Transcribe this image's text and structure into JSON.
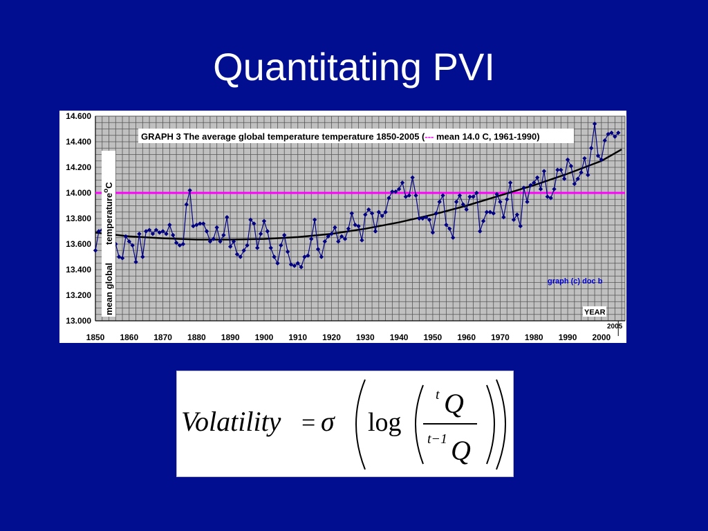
{
  "slide": {
    "title": "Quantitating PVI"
  },
  "chart_data": {
    "type": "line",
    "title": "GRAPH 3 The average global temperature temperature 1850-2005 (",
    "title_dash": "---",
    "title_suffix": " mean 14.0 C, 1961-1990)",
    "ylabel_part1": "mean global",
    "ylabel_part2": "temperature",
    "ylabel_degree": "o",
    "ylabel_unit": "C",
    "xlabel": "YEAR",
    "end_year_label": "2005",
    "credit": "graph (c) doc b",
    "xlim": [
      1850,
      2007
    ],
    "ylim": [
      13.0,
      14.6
    ],
    "x_ticks": [
      "1850",
      "1860",
      "1870",
      "1880",
      "1890",
      "1900",
      "1910",
      "1920",
      "1930",
      "1940",
      "1950",
      "1960",
      "1970",
      "1980",
      "1990",
      "2000"
    ],
    "y_ticks": [
      "13.000",
      "13.200",
      "13.400",
      "13.600",
      "13.800",
      "14.000",
      "14.200",
      "14.400",
      "14.600"
    ],
    "grid": true,
    "colors": {
      "plot_bg": "#c0c0c0",
      "grid": "#555555",
      "series": "#000080",
      "trend": "#000000",
      "reference": "#ff00ff",
      "credit": "#0000cc"
    },
    "reference_line": {
      "name": "mean 14.0 C, 1961-1990",
      "y": 14.0
    },
    "trend": {
      "x": [
        1850,
        1860,
        1870,
        1880,
        1890,
        1900,
        1910,
        1920,
        1930,
        1940,
        1950,
        1960,
        1970,
        1980,
        1990,
        2000,
        2006
      ],
      "y": [
        13.69,
        13.66,
        13.645,
        13.635,
        13.635,
        13.64,
        13.655,
        13.68,
        13.72,
        13.77,
        13.83,
        13.9,
        13.98,
        14.06,
        14.15,
        14.25,
        14.34
      ]
    },
    "series": [
      {
        "x": [
          1850,
          1851,
          1852,
          1853,
          1854,
          1855,
          1856,
          1857,
          1858,
          1859,
          1860,
          1861,
          1862,
          1863,
          1864,
          1865,
          1866,
          1867,
          1868,
          1869,
          1870,
          1871,
          1872,
          1873,
          1874,
          1875,
          1876,
          1877,
          1878,
          1879,
          1880,
          1881,
          1882,
          1883,
          1884,
          1885,
          1886,
          1887,
          1888,
          1889,
          1890,
          1891,
          1892,
          1893,
          1894,
          1895,
          1896,
          1897,
          1898,
          1899,
          1900,
          1901,
          1902,
          1903,
          1904,
          1905,
          1906,
          1907,
          1908,
          1909,
          1910,
          1911,
          1912,
          1913,
          1914,
          1915,
          1916,
          1917,
          1918,
          1919,
          1920,
          1921,
          1922,
          1923,
          1924,
          1925,
          1926,
          1927,
          1928,
          1929,
          1930,
          1931,
          1932,
          1933,
          1934,
          1935,
          1936,
          1937,
          1938,
          1939,
          1940,
          1941,
          1942,
          1943,
          1944,
          1945,
          1946,
          1947,
          1948,
          1949,
          1950,
          1951,
          1952,
          1953,
          1954,
          1955,
          1956,
          1957,
          1958,
          1959,
          1960,
          1961,
          1962,
          1963,
          1964,
          1965,
          1966,
          1967,
          1968,
          1969,
          1970,
          1971,
          1972,
          1973,
          1974,
          1975,
          1976,
          1977,
          1978,
          1979,
          1980,
          1981,
          1982,
          1983,
          1984,
          1985,
          1986,
          1987,
          1988,
          1989,
          1990,
          1991,
          1992,
          1993,
          1994,
          1995,
          1996,
          1997,
          1998,
          1999,
          2000,
          2001,
          2002,
          2003,
          2004,
          2005
        ],
        "values": [
          13.55,
          13.7,
          13.71,
          13.66,
          13.69,
          13.68,
          13.6,
          13.5,
          13.49,
          13.66,
          13.62,
          13.59,
          13.46,
          13.68,
          13.5,
          13.7,
          13.71,
          13.68,
          13.71,
          13.69,
          13.7,
          13.68,
          13.75,
          13.67,
          13.61,
          13.59,
          13.6,
          13.91,
          14.02,
          13.74,
          13.75,
          13.76,
          13.76,
          13.7,
          13.62,
          13.64,
          13.73,
          13.62,
          13.67,
          13.81,
          13.58,
          13.62,
          13.52,
          13.5,
          13.55,
          13.59,
          13.79,
          13.76,
          13.57,
          13.68,
          13.78,
          13.7,
          13.57,
          13.5,
          13.45,
          13.59,
          13.67,
          13.54,
          13.44,
          13.43,
          13.45,
          13.42,
          13.5,
          13.51,
          13.64,
          13.79,
          13.56,
          13.5,
          13.62,
          13.66,
          13.68,
          13.73,
          13.62,
          13.66,
          13.64,
          13.72,
          13.84,
          13.75,
          13.74,
          13.63,
          13.83,
          13.87,
          13.84,
          13.7,
          13.85,
          13.82,
          13.85,
          13.96,
          14.01,
          14.01,
          14.03,
          14.08,
          13.97,
          13.98,
          14.12,
          13.98,
          13.8,
          13.8,
          13.81,
          13.79,
          13.69,
          13.84,
          13.93,
          13.98,
          13.75,
          13.72,
          13.65,
          13.93,
          13.98,
          13.91,
          13.87,
          13.97,
          13.97,
          14.0,
          13.7,
          13.78,
          13.85,
          13.85,
          13.84,
          13.99,
          13.93,
          13.81,
          13.95,
          14.08,
          13.79,
          13.83,
          13.74,
          14.04,
          13.93,
          14.06,
          14.08,
          14.12,
          14.03,
          14.17,
          13.97,
          13.96,
          14.03,
          14.18,
          14.18,
          14.11,
          14.26,
          14.21,
          14.07,
          14.11,
          14.16,
          14.27,
          14.14,
          14.35,
          14.54,
          14.29,
          14.26,
          14.41,
          14.46,
          14.47,
          14.44,
          14.47
        ]
      }
    ]
  },
  "formula": {
    "lhs": "Volatility",
    "equals": "=",
    "sigma": "σ",
    "log": "log",
    "num_superscript": "t",
    "num_var": "Q",
    "den_prefix": "t−1",
    "den_var": "Q"
  }
}
